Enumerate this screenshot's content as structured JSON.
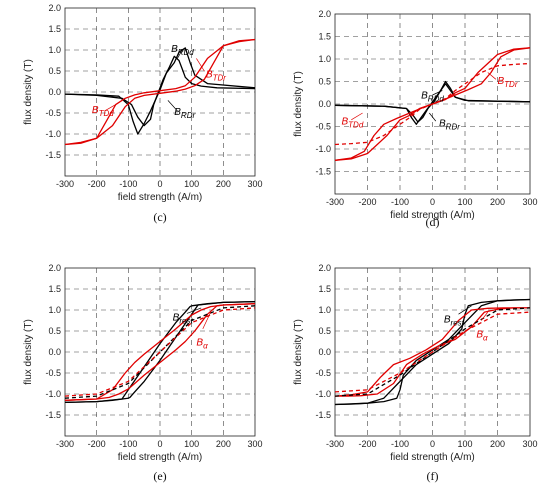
{
  "chart_data": [
    {
      "type": "line",
      "caption": "(c)",
      "xlabel": "field strength (A/m)",
      "ylabel": "flux density (T)",
      "xlim": [
        -300,
        300
      ],
      "ylim": [
        -2.0,
        2.0
      ],
      "xticks": [
        "-300",
        "-200",
        "-100",
        "0",
        "100",
        "200",
        "300"
      ],
      "yticks": [
        "-1.5",
        "-1.0",
        "-0.5",
        "0.0",
        "0.5",
        "1.0",
        "1.5",
        "2.0"
      ],
      "grid": true,
      "annotations": [
        {
          "text": "B",
          "sub": "RDd",
          "color": "#000000",
          "x": 35,
          "y": 0.95,
          "leader": [
            [
              70,
              1.0
            ],
            [
              55,
              0.8
            ]
          ]
        },
        {
          "text": "B",
          "sub": "TDr",
          "color": "#e00000",
          "x": 145,
          "y": 0.35,
          "leader": [
            [
              140,
              0.5
            ],
            [
              115,
              0.8
            ]
          ]
        },
        {
          "text": "B",
          "sub": "TDd",
          "color": "#e00000",
          "x": -215,
          "y": -0.5,
          "leader": [
            [
              -175,
              -0.45
            ],
            [
              -140,
              -0.3
            ]
          ]
        },
        {
          "text": "B",
          "sub": "RDr",
          "color": "#000000",
          "x": 45,
          "y": -0.55,
          "leader": [
            [
              55,
              -0.45
            ],
            [
              25,
              -0.2
            ]
          ]
        }
      ],
      "series": [
        {
          "color": "#000000",
          "dash": false,
          "x": [
            -300,
            -200,
            -120,
            -90,
            -70,
            -50,
            -30,
            -20,
            10,
            30,
            45,
            60,
            70,
            80,
            100,
            130,
            180,
            300
          ],
          "y": [
            -0.05,
            -0.08,
            -0.15,
            -0.3,
            -0.6,
            -0.8,
            -0.65,
            -0.3,
            0.3,
            0.6,
            0.85,
            0.75,
            0.55,
            0.35,
            0.2,
            0.14,
            0.1,
            0.08
          ]
        },
        {
          "color": "#000000",
          "dash": false,
          "x": [
            -300,
            -200,
            -130,
            -100,
            -85,
            -70,
            -50,
            -30,
            0,
            20,
            45,
            60,
            80,
            95,
            110,
            150,
            300
          ],
          "y": [
            -0.05,
            -0.07,
            -0.1,
            -0.3,
            -0.7,
            -1.0,
            -0.75,
            -0.45,
            0.05,
            0.45,
            0.7,
            0.95,
            1.05,
            0.7,
            0.4,
            0.2,
            0.1
          ]
        },
        {
          "color": "#e00000",
          "dash": false,
          "x": [
            -300,
            -250,
            -200,
            -170,
            -140,
            -110,
            -80,
            -50,
            0,
            50,
            80,
            110,
            150,
            200,
            250,
            300
          ],
          "y": [
            -1.25,
            -1.22,
            -1.1,
            -0.7,
            -0.3,
            -0.15,
            -0.07,
            -0.02,
            0.03,
            0.08,
            0.15,
            0.35,
            0.8,
            1.1,
            1.2,
            1.25
          ]
        },
        {
          "color": "#e00000",
          "dash": false,
          "x": [
            -300,
            -250,
            -200,
            -150,
            -110,
            -80,
            -50,
            0,
            50,
            80,
            110,
            140,
            170,
            200,
            250,
            300
          ],
          "y": [
            -1.25,
            -1.2,
            -1.1,
            -0.8,
            -0.35,
            -0.15,
            -0.08,
            -0.03,
            0.02,
            0.07,
            0.15,
            0.3,
            0.7,
            1.1,
            1.22,
            1.25
          ]
        }
      ]
    },
    {
      "type": "line",
      "caption": "(d)",
      "xlabel": "field strength (A/m)",
      "ylabel": "flux density (T)",
      "xlim": [
        -300,
        300
      ],
      "ylim": [
        -2.0,
        2.0
      ],
      "xticks": [
        "-300",
        "-200",
        "-100",
        "0",
        "100",
        "200",
        "300"
      ],
      "yticks": [
        "-1.5",
        "-1.0",
        "-0.5",
        "0.0",
        "0.5",
        "1.0",
        "1.5",
        "2.0"
      ],
      "grid": true,
      "annotations": [
        {
          "text": "B",
          "sub": "RDd",
          "color": "#000000",
          "x": -35,
          "y": 0.12,
          "leader": [
            [
              0,
              0.2
            ],
            [
              30,
              0.3
            ]
          ]
        },
        {
          "text": "B",
          "sub": "TDr",
          "color": "#e00000",
          "x": 200,
          "y": 0.45,
          "leader": [
            [
              195,
              0.55
            ],
            [
              170,
              0.7
            ]
          ]
        },
        {
          "text": "B",
          "sub": "TDd",
          "color": "#e00000",
          "x": -280,
          "y": -0.45,
          "leader": [
            [
              -250,
              -0.35
            ],
            [
              -215,
              -0.2
            ]
          ]
        },
        {
          "text": "B",
          "sub": "RDr",
          "color": "#000000",
          "x": 20,
          "y": -0.5,
          "leader": [
            [
              10,
              -0.38
            ],
            [
              -10,
              -0.2
            ]
          ]
        }
      ],
      "series": [
        {
          "color": "#000000",
          "dash": false,
          "x": [
            -300,
            -150,
            -80,
            -60,
            -45,
            -30,
            -10,
            10,
            30,
            40,
            55,
            70,
            100,
            300
          ],
          "y": [
            -0.03,
            -0.05,
            -0.1,
            -0.25,
            -0.4,
            -0.3,
            -0.05,
            0.15,
            0.35,
            0.45,
            0.3,
            0.15,
            0.08,
            0.05
          ]
        },
        {
          "color": "#000000",
          "dash": false,
          "x": [
            -300,
            -150,
            -80,
            -65,
            -50,
            -35,
            -15,
            5,
            25,
            40,
            55,
            70,
            110,
            300
          ],
          "y": [
            -0.03,
            -0.05,
            -0.1,
            -0.3,
            -0.45,
            -0.3,
            -0.1,
            0.05,
            0.3,
            0.5,
            0.35,
            0.15,
            0.07,
            0.05
          ]
        },
        {
          "color": "#e00000",
          "dash": false,
          "x": [
            -300,
            -250,
            -210,
            -180,
            -150,
            -110,
            -70,
            -30,
            0,
            40,
            70,
            100,
            140,
            200,
            250,
            300
          ],
          "y": [
            -1.25,
            -1.2,
            -1.05,
            -0.7,
            -0.45,
            -0.32,
            -0.2,
            -0.08,
            0.0,
            0.1,
            0.25,
            0.35,
            0.7,
            1.1,
            1.22,
            1.25
          ]
        },
        {
          "color": "#e00000",
          "dash": false,
          "x": [
            -300,
            -250,
            -200,
            -140,
            -100,
            -70,
            -40,
            0,
            30,
            70,
            110,
            150,
            180,
            210,
            250,
            300
          ],
          "y": [
            -1.25,
            -1.22,
            -1.1,
            -0.7,
            -0.35,
            -0.25,
            -0.1,
            0.0,
            0.08,
            0.2,
            0.32,
            0.45,
            0.7,
            1.05,
            1.2,
            1.25
          ]
        },
        {
          "color": "#e00000",
          "dash": true,
          "x": [
            -300,
            -250,
            -200,
            -150,
            -100,
            -70,
            -40,
            0,
            40,
            70,
            100,
            150,
            200,
            250,
            300
          ],
          "y": [
            -0.9,
            -0.88,
            -0.85,
            -0.7,
            -0.45,
            -0.3,
            -0.12,
            0.0,
            0.12,
            0.3,
            0.45,
            0.7,
            0.85,
            0.88,
            0.9
          ]
        }
      ]
    },
    {
      "type": "line",
      "caption": "(e)",
      "xlabel": "field strength (A/m)",
      "ylabel": "flux density (T)",
      "xlim": [
        -300,
        300
      ],
      "ylim": [
        -2.0,
        2.0
      ],
      "xticks": [
        "-300",
        "-200",
        "-100",
        "0",
        "100",
        "200",
        "300"
      ],
      "yticks": [
        "-1.5",
        "-1.0",
        "-0.5",
        "0.0",
        "0.5",
        "1.0",
        "1.5",
        "2.0"
      ],
      "grid": true,
      "annotations": [
        {
          "text": "B",
          "sub": "rest",
          "color": "#000000",
          "x": 40,
          "y": 0.75,
          "leader": [
            [
              85,
              0.92
            ],
            [
              130,
              1.05
            ]
          ]
        },
        {
          "text": "B",
          "sub": "α",
          "color": "#e00000",
          "x": 115,
          "y": 0.15,
          "leader": [
            [
              135,
              0.55
            ],
            [
              160,
              0.95
            ]
          ]
        }
      ],
      "series": [
        {
          "color": "#000000",
          "dash": false,
          "x": [
            -300,
            -200,
            -120,
            -100,
            -50,
            0,
            50,
            80,
            95,
            100,
            150,
            200,
            300
          ],
          "y": [
            -1.2,
            -1.18,
            -1.12,
            -0.9,
            -0.35,
            0.2,
            0.7,
            0.95,
            1.08,
            1.1,
            1.15,
            1.18,
            1.2
          ]
        },
        {
          "color": "#000000",
          "dash": false,
          "x": [
            -300,
            -200,
            -150,
            -100,
            -95,
            -80,
            -50,
            0,
            50,
            100,
            120,
            200,
            300
          ],
          "y": [
            -1.2,
            -1.18,
            -1.15,
            -1.1,
            -1.08,
            -0.95,
            -0.7,
            -0.2,
            0.35,
            0.9,
            1.12,
            1.18,
            1.2
          ]
        },
        {
          "color": "#e00000",
          "dash": false,
          "x": [
            -300,
            -200,
            -150,
            -110,
            -80,
            -50,
            0,
            50,
            80,
            100,
            130,
            160,
            200,
            300
          ],
          "y": [
            -1.15,
            -1.12,
            -0.9,
            -0.5,
            -0.25,
            -0.05,
            0.25,
            0.55,
            0.75,
            0.88,
            1.0,
            1.08,
            1.12,
            1.15
          ]
        },
        {
          "color": "#e00000",
          "dash": false,
          "x": [
            -300,
            -200,
            -160,
            -130,
            -100,
            -80,
            -50,
            0,
            50,
            80,
            110,
            150,
            180,
            200,
            300
          ],
          "y": [
            -1.15,
            -1.12,
            -1.08,
            -1.0,
            -0.88,
            -0.75,
            -0.55,
            -0.25,
            0.05,
            0.25,
            0.5,
            0.9,
            1.1,
            1.12,
            1.15
          ]
        },
        {
          "color": "#000000",
          "dash": true,
          "x": [
            -300,
            -200,
            -100,
            0,
            100,
            200,
            300
          ],
          "y": [
            -1.1,
            -1.05,
            -0.75,
            0.0,
            0.75,
            1.05,
            1.1
          ]
        },
        {
          "color": "#e00000",
          "dash": true,
          "x": [
            -300,
            -200,
            -100,
            0,
            100,
            200,
            300
          ],
          "y": [
            -1.05,
            -1.0,
            -0.7,
            0.0,
            0.7,
            1.0,
            1.05
          ]
        }
      ]
    },
    {
      "type": "line",
      "caption": "(f)",
      "xlabel": "field strength (A/m)",
      "ylabel": "flux density (T)",
      "xlim": [
        -300,
        300
      ],
      "ylim": [
        -2.0,
        2.0
      ],
      "xticks": [
        "-300",
        "-200",
        "-100",
        "0",
        "100",
        "200",
        "300"
      ],
      "yticks": [
        "-1.5",
        "-1.0",
        "-0.5",
        "0.0",
        "0.5",
        "1.0",
        "1.5",
        "2.0"
      ],
      "grid": true,
      "annotations": [
        {
          "text": "B",
          "sub": "rest",
          "color": "#000000",
          "x": 35,
          "y": 0.7,
          "leader": [
            [
              80,
              0.9
            ],
            [
              120,
              1.1
            ]
          ]
        },
        {
          "text": "B",
          "sub": "α",
          "color": "#e00000",
          "x": 135,
          "y": 0.35,
          "leader": [
            [
              150,
              0.75
            ],
            [
              170,
              0.95
            ]
          ]
        }
      ],
      "series": [
        {
          "color": "#000000",
          "dash": false,
          "x": [
            -300,
            -250,
            -200,
            -150,
            -100,
            -50,
            0,
            50,
            90,
            100,
            110,
            150,
            200,
            300
          ],
          "y": [
            -1.25,
            -1.24,
            -1.22,
            -1.1,
            -0.7,
            -0.3,
            -0.05,
            0.2,
            0.55,
            0.9,
            1.1,
            1.18,
            1.22,
            1.25
          ]
        },
        {
          "color": "#000000",
          "dash": false,
          "x": [
            -300,
            -200,
            -150,
            -110,
            -100,
            -90,
            -50,
            0,
            50,
            100,
            150,
            200,
            250,
            300
          ],
          "y": [
            -1.25,
            -1.22,
            -1.18,
            -1.1,
            -0.9,
            -0.55,
            -0.2,
            0.05,
            0.3,
            0.7,
            1.1,
            1.22,
            1.24,
            1.25
          ]
        },
        {
          "color": "#e00000",
          "dash": false,
          "x": [
            -300,
            -250,
            -200,
            -160,
            -120,
            -70,
            -20,
            30,
            80,
            120,
            170,
            220,
            260,
            300
          ],
          "y": [
            -1.05,
            -1.02,
            -0.95,
            -0.6,
            -0.3,
            -0.15,
            0.05,
            0.3,
            0.75,
            1.0,
            1.04,
            1.05,
            1.05,
            1.05
          ]
        },
        {
          "color": "#e00000",
          "dash": false,
          "x": [
            -300,
            -260,
            -220,
            -170,
            -120,
            -80,
            -30,
            20,
            70,
            120,
            160,
            200,
            250,
            300
          ],
          "y": [
            -1.05,
            -1.05,
            -1.04,
            -1.0,
            -0.75,
            -0.3,
            -0.05,
            0.15,
            0.3,
            0.6,
            0.95,
            1.02,
            1.05,
            1.05
          ]
        },
        {
          "color": "#000000",
          "dash": true,
          "x": [
            -300,
            -200,
            -100,
            0,
            100,
            200,
            300
          ],
          "y": [
            -1.05,
            -1.0,
            -0.55,
            0.0,
            0.55,
            1.0,
            1.05
          ]
        },
        {
          "color": "#e00000",
          "dash": true,
          "x": [
            -300,
            -200,
            -100,
            0,
            100,
            200,
            300
          ],
          "y": [
            -0.95,
            -0.9,
            -0.5,
            0.0,
            0.5,
            0.9,
            0.95
          ]
        }
      ]
    }
  ]
}
